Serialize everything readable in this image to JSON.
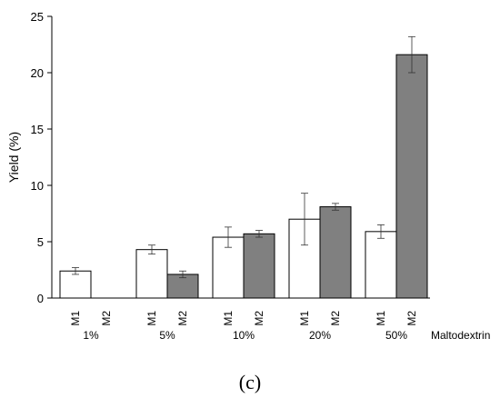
{
  "chart_data": {
    "type": "bar",
    "ylabel": "Yield (%)",
    "xlabel": "Maltodextrin",
    "ylim": [
      0,
      25
    ],
    "yticks": [
      0,
      5,
      10,
      15,
      20,
      25
    ],
    "grid": false,
    "categories": [
      "1%",
      "5%",
      "10%",
      "20%",
      "50%"
    ],
    "series": [
      {
        "name": "M1",
        "color": "#ffffff",
        "values": [
          2.4,
          4.3,
          5.4,
          7.0,
          5.9
        ],
        "errors": [
          0.3,
          0.4,
          0.9,
          2.3,
          0.6
        ]
      },
      {
        "name": "M2",
        "color": "#808080",
        "values": [
          null,
          2.1,
          5.7,
          8.1,
          21.6
        ],
        "errors": [
          null,
          0.3,
          0.3,
          0.3,
          1.6
        ]
      }
    ]
  },
  "panel_label": "(c)"
}
